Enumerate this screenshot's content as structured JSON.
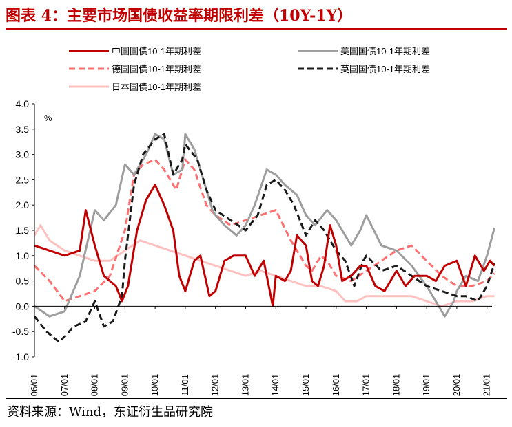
{
  "figure": {
    "title": "图表 4：主要市场国债收益率期限利差（10Y-1Y）",
    "source": "资料来源：Wind，东证衍生品研究院"
  },
  "chart_data": {
    "type": "line",
    "yunit": "%",
    "ylim": [
      -1.0,
      4.0
    ],
    "yticks": [
      "4.0",
      "3.5",
      "3.0",
      "2.5",
      "2.0",
      "1.5",
      "1.0",
      "0.5",
      "0.0",
      "-0.5",
      "-1.0"
    ],
    "xticks": [
      "06/01",
      "07/01",
      "08/01",
      "09/01",
      "10/01",
      "11/01",
      "12/01",
      "13/01",
      "14/01",
      "15/01",
      "16/01",
      "17/01",
      "18/01",
      "19/01",
      "20/01",
      "21/01"
    ],
    "x_start": "2006-01",
    "x_end": "2021-03",
    "legend_position": "top",
    "grid": false,
    "series": [
      {
        "name": "中国国债10-1年期利差",
        "color": "#c00000",
        "style": "solid",
        "x": [
          2006.0,
          2006.5,
          2007.0,
          2007.5,
          2007.7,
          2008.0,
          2008.3,
          2008.7,
          2008.9,
          2009.1,
          2009.4,
          2009.7,
          2010.0,
          2010.3,
          2010.6,
          2010.8,
          2011.0,
          2011.3,
          2011.5,
          2011.8,
          2012.0,
          2012.3,
          2012.6,
          2013.0,
          2013.3,
          2013.6,
          2013.9,
          2014.0,
          2014.3,
          2014.5,
          2014.7,
          2015.0,
          2015.2,
          2015.4,
          2015.6,
          2015.8,
          2016.0,
          2016.2,
          2016.5,
          2016.8,
          2017.0,
          2017.3,
          2017.6,
          2018.0,
          2018.3,
          2018.6,
          2019.0,
          2019.3,
          2019.6,
          2020.0,
          2020.3,
          2020.6,
          2020.9,
          2021.1,
          2021.25
        ],
        "y": [
          1.2,
          1.1,
          1.0,
          1.1,
          1.9,
          1.2,
          0.6,
          0.4,
          0.1,
          0.4,
          1.5,
          2.1,
          2.4,
          2.0,
          1.5,
          0.6,
          0.3,
          0.9,
          1.0,
          0.2,
          0.3,
          0.9,
          1.0,
          1.0,
          0.6,
          0.9,
          0.0,
          0.6,
          0.5,
          0.7,
          1.4,
          1.2,
          0.5,
          0.4,
          0.8,
          1.6,
          1.2,
          0.5,
          0.6,
          0.8,
          0.8,
          0.4,
          0.3,
          0.7,
          0.4,
          0.6,
          0.6,
          0.5,
          0.8,
          0.9,
          0.4,
          1.0,
          0.7,
          0.9,
          0.8
        ]
      },
      {
        "name": "美国国债10-1年期利差",
        "color": "#9e9e9e",
        "style": "solid",
        "x": [
          2006.0,
          2006.5,
          2007.0,
          2007.5,
          2008.0,
          2008.3,
          2008.7,
          2009.0,
          2009.3,
          2009.7,
          2010.0,
          2010.3,
          2010.6,
          2010.9,
          2011.0,
          2011.3,
          2011.6,
          2011.9,
          2012.0,
          2012.3,
          2012.7,
          2013.0,
          2013.3,
          2013.7,
          2014.0,
          2014.3,
          2014.7,
          2015.0,
          2015.3,
          2015.7,
          2016.0,
          2016.5,
          2016.8,
          2017.0,
          2017.5,
          2018.0,
          2018.5,
          2019.0,
          2019.3,
          2019.6,
          2019.9,
          2020.0,
          2020.3,
          2020.7,
          2021.0,
          2021.25
        ],
        "y": [
          0.0,
          -0.2,
          -0.1,
          0.6,
          1.9,
          1.7,
          2.0,
          2.8,
          2.6,
          3.0,
          3.4,
          3.3,
          2.6,
          2.7,
          3.4,
          3.1,
          2.5,
          1.9,
          1.8,
          1.6,
          1.4,
          1.6,
          2.0,
          2.7,
          2.6,
          2.4,
          2.2,
          1.8,
          1.6,
          1.9,
          1.7,
          1.2,
          1.5,
          1.8,
          1.2,
          1.1,
          0.8,
          0.4,
          0.1,
          -0.2,
          0.1,
          0.3,
          0.6,
          0.5,
          1.0,
          1.55
        ]
      },
      {
        "name": "德国国债10-1年期利差",
        "color": "#ff6f6f",
        "style": "dashed",
        "x": [
          2006.0,
          2006.5,
          2007.0,
          2007.5,
          2008.0,
          2008.5,
          2009.0,
          2009.3,
          2009.6,
          2010.0,
          2010.3,
          2010.7,
          2011.0,
          2011.3,
          2011.7,
          2012.0,
          2012.5,
          2013.0,
          2013.5,
          2014.0,
          2014.5,
          2015.0,
          2015.2,
          2015.5,
          2015.7,
          2016.0,
          2016.5,
          2017.0,
          2017.5,
          2018.0,
          2018.5,
          2019.0,
          2019.5,
          2020.0,
          2020.5,
          2021.0,
          2021.25
        ],
        "y": [
          0.8,
          0.5,
          0.1,
          0.2,
          0.3,
          0.6,
          1.5,
          2.6,
          2.8,
          2.9,
          2.7,
          2.3,
          2.9,
          2.7,
          2.0,
          1.8,
          1.6,
          1.7,
          1.8,
          1.9,
          1.3,
          0.8,
          0.7,
          1.0,
          0.9,
          0.6,
          0.5,
          0.7,
          0.9,
          1.1,
          1.2,
          0.9,
          0.6,
          0.4,
          0.4,
          0.5,
          0.65
        ]
      },
      {
        "name": "英国国债10-1年期利差",
        "color": "#1a1a1a",
        "style": "dashed",
        "x": [
          2006.0,
          2006.4,
          2006.8,
          2007.0,
          2007.3,
          2007.7,
          2008.0,
          2008.3,
          2008.6,
          2008.9,
          2009.0,
          2009.3,
          2009.6,
          2010.0,
          2010.3,
          2010.6,
          2010.9,
          2011.0,
          2011.4,
          2011.7,
          2012.0,
          2012.5,
          2013.0,
          2013.4,
          2013.7,
          2014.0,
          2014.3,
          2014.6,
          2015.0,
          2015.3,
          2015.6,
          2016.0,
          2016.3,
          2016.6,
          2016.9,
          2017.0,
          2017.5,
          2018.0,
          2018.5,
          2019.0,
          2019.5,
          2020.0,
          2020.3,
          2020.7,
          2021.0,
          2021.25
        ],
        "y": [
          -0.2,
          -0.5,
          -0.7,
          -0.6,
          -0.4,
          -0.3,
          0.1,
          -0.4,
          -0.3,
          0.2,
          0.9,
          2.4,
          3.0,
          3.3,
          3.4,
          2.6,
          2.9,
          3.2,
          2.9,
          2.3,
          1.9,
          1.7,
          1.5,
          1.8,
          2.4,
          2.5,
          2.3,
          2.0,
          1.4,
          1.7,
          1.5,
          1.1,
          0.9,
          0.4,
          0.9,
          1.0,
          0.7,
          0.8,
          0.6,
          0.4,
          0.3,
          0.2,
          0.2,
          0.1,
          0.4,
          0.85
        ]
      },
      {
        "name": "日本国债10-1年期利差",
        "color": "#ffc0c0",
        "style": "solid",
        "x": [
          2006.0,
          2006.2,
          2006.5,
          2007.0,
          2007.5,
          2008.0,
          2008.5,
          2009.0,
          2009.5,
          2010.0,
          2010.5,
          2011.0,
          2011.5,
          2012.0,
          2012.5,
          2013.0,
          2013.5,
          2014.0,
          2014.5,
          2015.0,
          2015.5,
          2016.0,
          2016.3,
          2016.7,
          2017.0,
          2017.5,
          2018.0,
          2018.5,
          2019.0,
          2019.5,
          2020.0,
          2020.5,
          2021.0,
          2021.25
        ],
        "y": [
          1.4,
          1.6,
          1.3,
          1.1,
          1.0,
          0.9,
          0.9,
          1.1,
          1.3,
          1.2,
          1.1,
          1.0,
          0.9,
          0.8,
          0.7,
          0.6,
          0.7,
          0.6,
          0.5,
          0.4,
          0.4,
          0.3,
          0.1,
          0.1,
          0.2,
          0.2,
          0.2,
          0.2,
          0.1,
          0.0,
          0.1,
          0.1,
          0.2,
          0.2
        ]
      }
    ]
  }
}
